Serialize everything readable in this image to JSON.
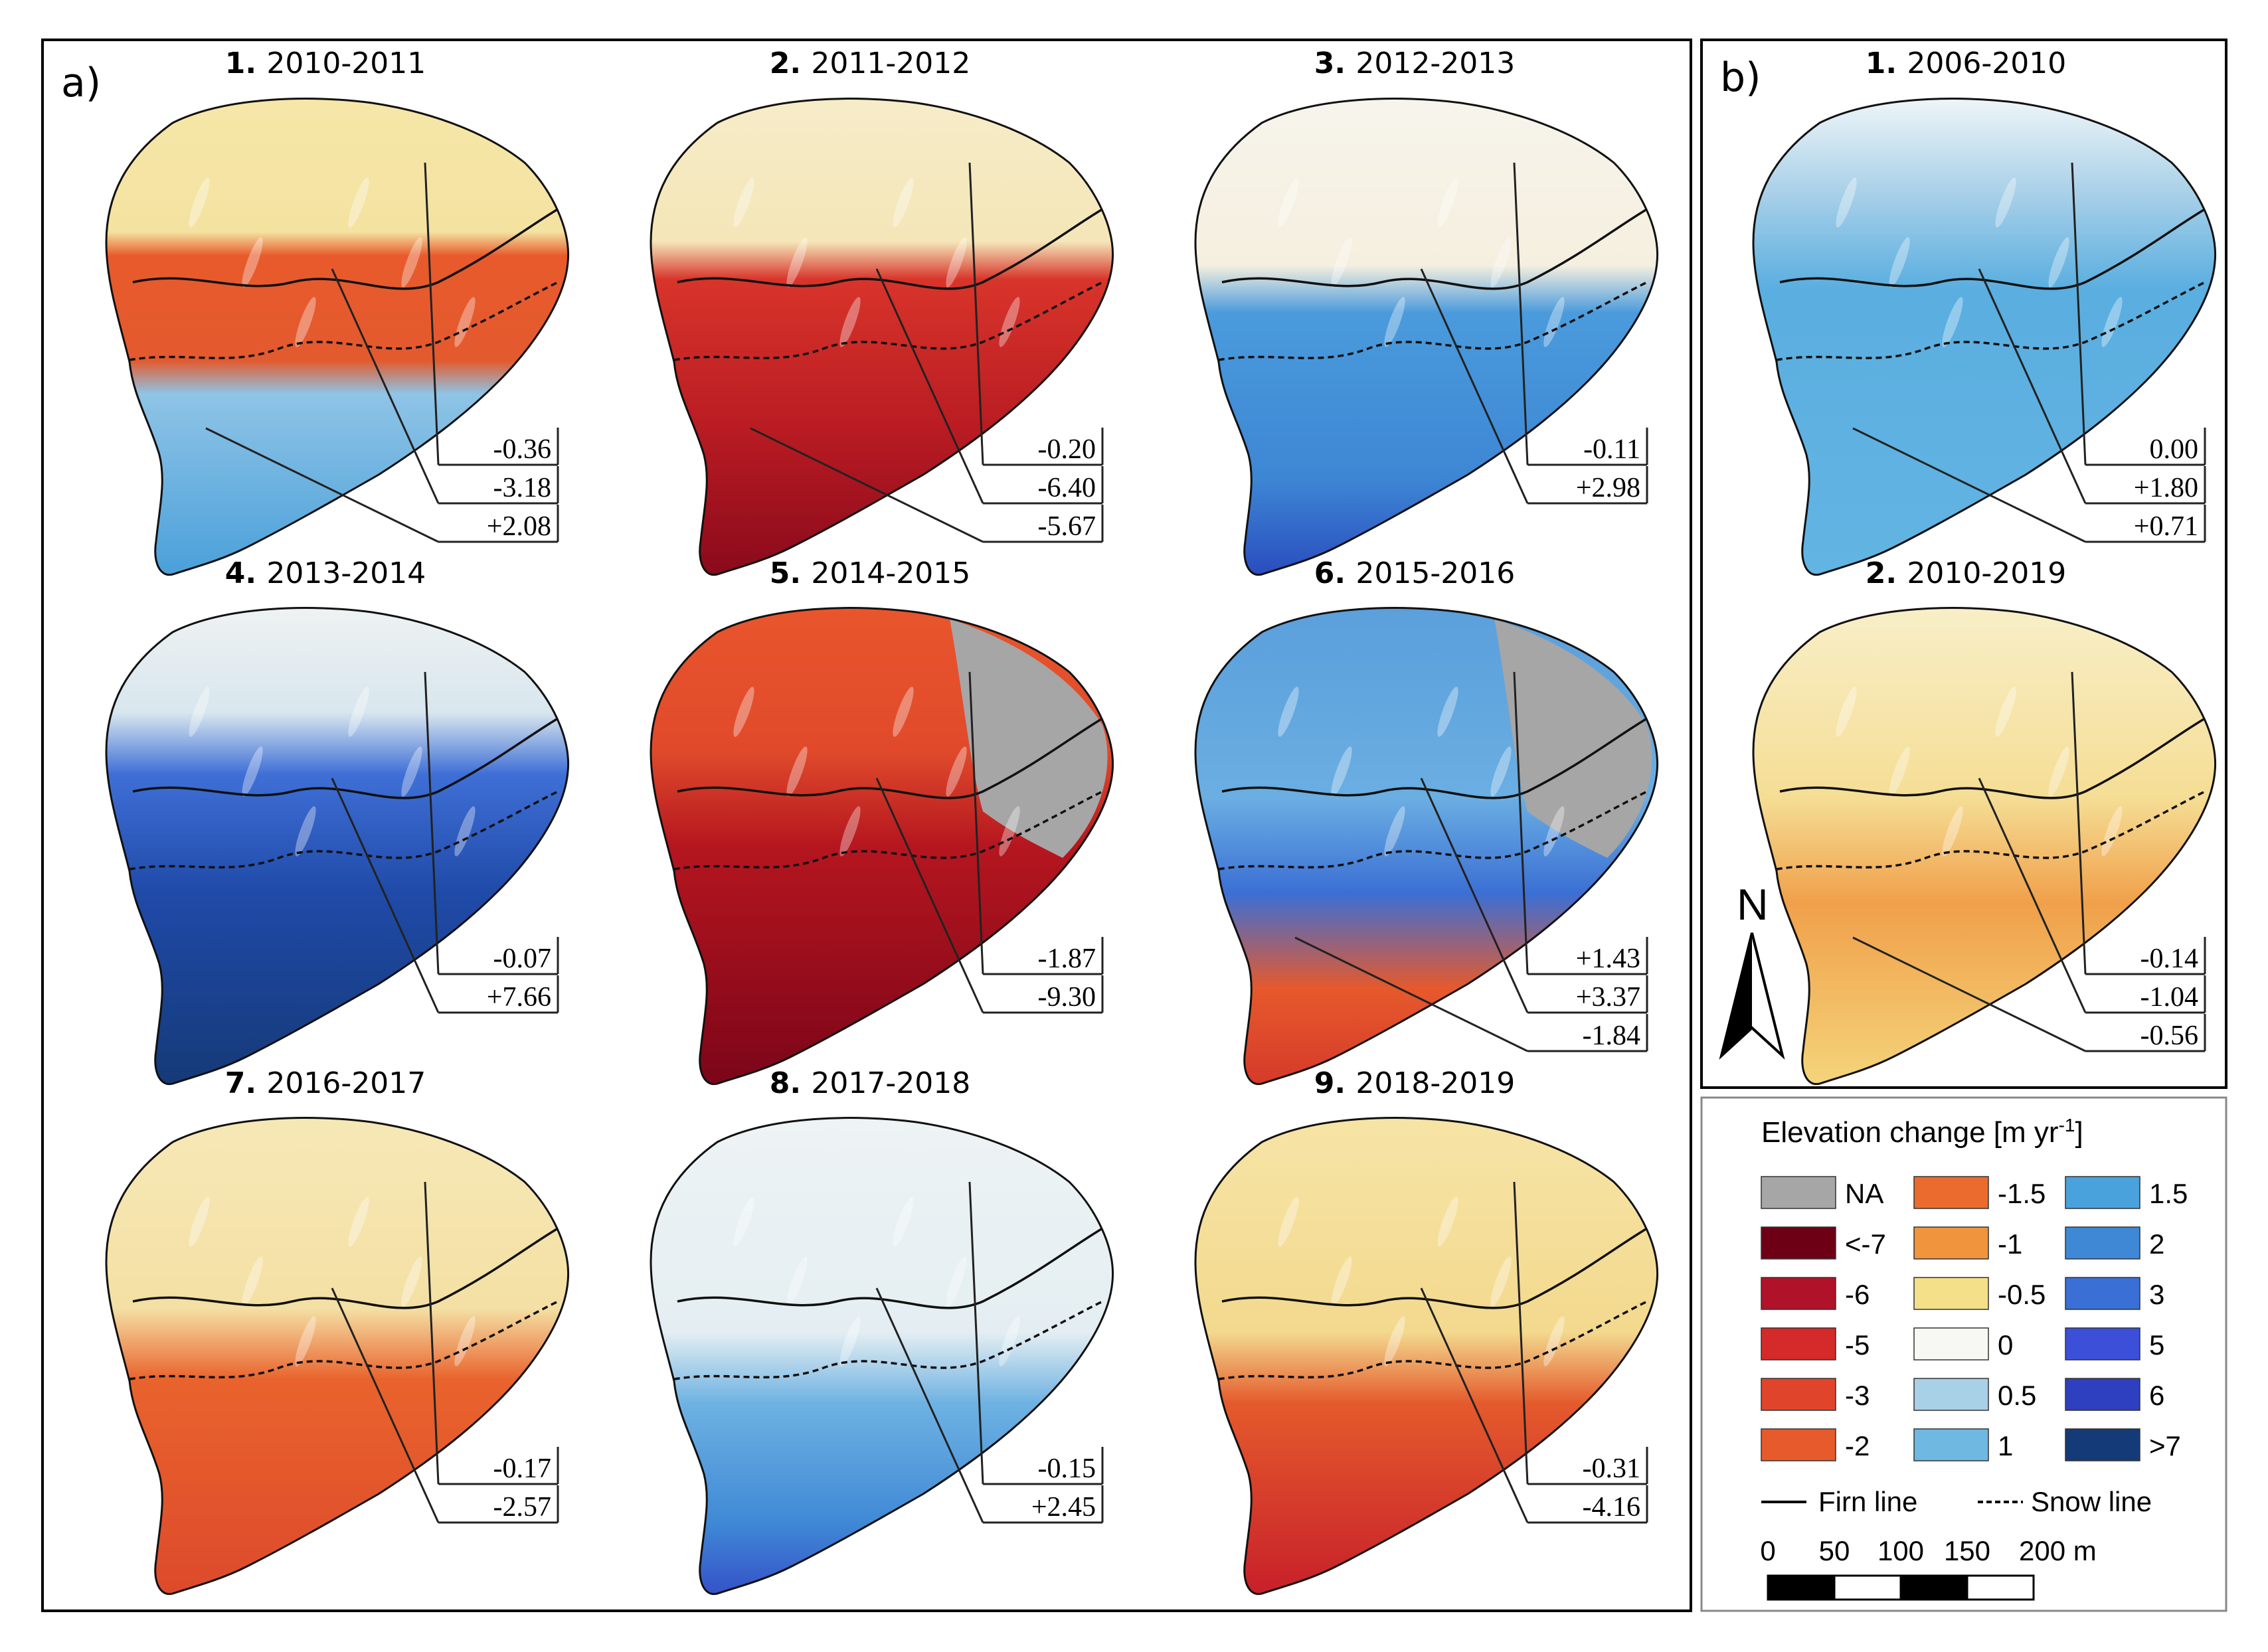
{
  "panel_a_label": "a)",
  "panel_b_label": "b)",
  "colors": {
    "NA": "#a6a6a6",
    "lt-7": "#6e0016",
    "m6": "#b0122a",
    "m5": "#d42a2a",
    "m3": "#e0452c",
    "m2": "#e65a2c",
    "m1_5": "#eb6a2e",
    "m1": "#f0943e",
    "m0_5": "#f3e088",
    "z0": "#f7f7f4",
    "p0_5": "#a8d0e6",
    "p1": "#6eb8e2",
    "p1_5": "#49a2dc",
    "p2": "#3e88d6",
    "p3": "#3a6fd6",
    "p5": "#3b4fd8",
    "p6": "#2e3fbf",
    "gt7": "#153a78"
  },
  "maps_a": [
    {
      "num": "1.",
      "period": "2010-2011",
      "scheme": "s1",
      "values": [
        "-0.36",
        "-3.18",
        "+2.08"
      ]
    },
    {
      "num": "2.",
      "period": "2011-2012",
      "scheme": "s2",
      "values": [
        "-0.20",
        "-6.40",
        "-5.67"
      ]
    },
    {
      "num": "3.",
      "period": "2012-2013",
      "scheme": "s3",
      "values": [
        "-0.11",
        "+2.98"
      ]
    },
    {
      "num": "4.",
      "period": "2013-2014",
      "scheme": "s4",
      "values": [
        "-0.07",
        "+7.66"
      ]
    },
    {
      "num": "5.",
      "period": "2014-2015",
      "scheme": "s5",
      "values": [
        "-1.87",
        "-9.30"
      ]
    },
    {
      "num": "6.",
      "period": "2015-2016",
      "scheme": "s6",
      "values": [
        "+1.43",
        "+3.37",
        "-1.84"
      ]
    },
    {
      "num": "7.",
      "period": "2016-2017",
      "scheme": "s7",
      "values": [
        "-0.17",
        "-2.57"
      ]
    },
    {
      "num": "8.",
      "period": "2017-2018",
      "scheme": "s8",
      "values": [
        "-0.15",
        "+2.45"
      ]
    },
    {
      "num": "9.",
      "period": "2018-2019",
      "scheme": "s9",
      "values": [
        "-0.31",
        "-4.16"
      ]
    }
  ],
  "maps_b": [
    {
      "num": "1.",
      "period": "2006-2010",
      "scheme": "b1",
      "values": [
        "0.00",
        "+1.80",
        "+0.71"
      ]
    },
    {
      "num": "2.",
      "period": "2010-2019",
      "scheme": "b2",
      "values": [
        "-0.14",
        "-1.04",
        "-0.56"
      ]
    }
  ],
  "north_label": "N",
  "legend": {
    "title": "Elevation change [m yr",
    "title_sup": "-1",
    "title_end": "]",
    "columns": [
      [
        {
          "label": "NA",
          "color": "#a6a6a6"
        },
        {
          "label": "<-7",
          "color": "#6e0016"
        },
        {
          "label": "-6",
          "color": "#b0122a"
        },
        {
          "label": "-5",
          "color": "#d42a2a"
        },
        {
          "label": "-3",
          "color": "#e0452c"
        },
        {
          "label": "-2",
          "color": "#e65a2c"
        }
      ],
      [
        {
          "label": "-1.5",
          "color": "#eb6a2e"
        },
        {
          "label": "-1",
          "color": "#f0943e"
        },
        {
          "label": "-0.5",
          "color": "#f3e088"
        },
        {
          "label": "0",
          "color": "#f7f7f4"
        },
        {
          "label": "0.5",
          "color": "#a8d0e6"
        },
        {
          "label": "1",
          "color": "#6eb8e2"
        }
      ],
      [
        {
          "label": "1.5",
          "color": "#49a2dc"
        },
        {
          "label": "2",
          "color": "#3e88d6"
        },
        {
          "label": "3",
          "color": "#3a6fd6"
        },
        {
          "label": "5",
          "color": "#3b4fd8"
        },
        {
          "label": "6",
          "color": "#2e3fbf"
        },
        {
          "label": ">7",
          "color": "#153a78"
        }
      ]
    ],
    "firn_label": "Firn line",
    "snow_label": "Snow line",
    "scale_ticks": [
      "0",
      "50",
      "100",
      "150",
      "200 m"
    ]
  }
}
